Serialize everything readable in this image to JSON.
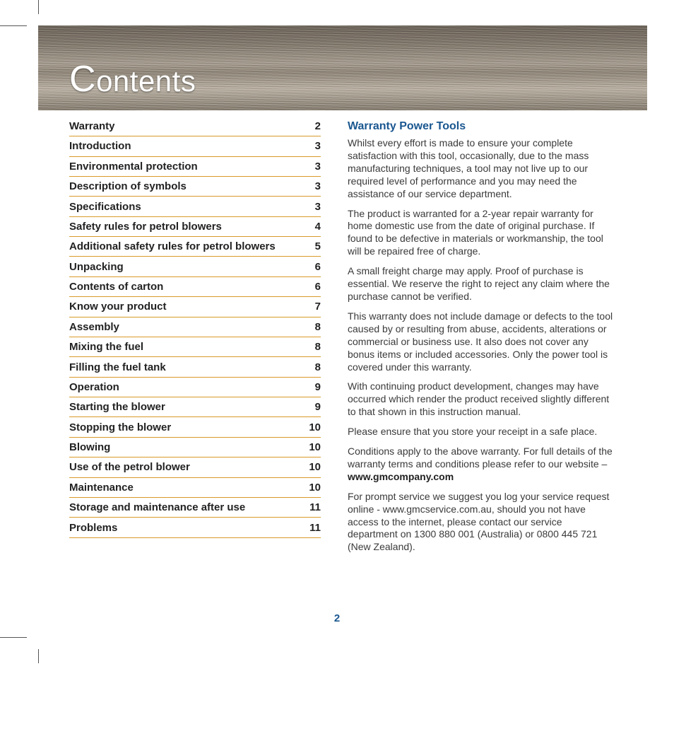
{
  "banner": {
    "title_cap": "C",
    "title_rest": "ontents"
  },
  "colors": {
    "heading": "#1a5790",
    "toc_rule": "#d99a2b",
    "body_text": "#3a3a3a",
    "page_number": "#1a5790"
  },
  "toc": [
    {
      "label": "Warranty",
      "page": "2"
    },
    {
      "label": "Introduction",
      "page": "3"
    },
    {
      "label": "Environmental protection",
      "page": "3"
    },
    {
      "label": "Description of symbols",
      "page": "3"
    },
    {
      "label": "Specifications",
      "page": "3"
    },
    {
      "label": "Safety rules for petrol blowers",
      "page": "4"
    },
    {
      "label": "Additional safety rules for petrol blowers",
      "page": "5"
    },
    {
      "label": "Unpacking",
      "page": "6"
    },
    {
      "label": "Contents of carton",
      "page": "6"
    },
    {
      "label": "Know your product",
      "page": "7"
    },
    {
      "label": "Assembly",
      "page": "8"
    },
    {
      "label": "Mixing the fuel",
      "page": "8"
    },
    {
      "label": "Filling the fuel tank",
      "page": "8"
    },
    {
      "label": "Operation",
      "page": "9"
    },
    {
      "label": "Starting the blower",
      "page": "9"
    },
    {
      "label": "Stopping the blower",
      "page": "10"
    },
    {
      "label": "Blowing",
      "page": "10"
    },
    {
      "label": "Use of the petrol blower",
      "page": "10"
    },
    {
      "label": "Maintenance",
      "page": "10"
    },
    {
      "label": "Storage and maintenance after use",
      "page": "11"
    },
    {
      "label": "Problems",
      "page": "11"
    }
  ],
  "warranty": {
    "heading": "Warranty Power Tools",
    "p1": "Whilst every effort is made to ensure your complete satisfaction with this tool, occasionally, due to the mass manufacturing techniques, a tool may not live up to our required level of performance and you may need the assistance of our service department.",
    "p2": "The product is warranted for a 2-year repair warranty for home domestic use from the date of original purchase. If found to be defective in materials or workmanship, the tool will be repaired free of charge.",
    "p3": "A small freight charge may apply. Proof of purchase is essential. We reserve the right to reject any claim where the purchase cannot be verified.",
    "p4": "This warranty does not include damage or defects to the tool caused by or resulting from abuse, accidents, alterations or commercial or business use. It also does not cover any bonus items or included accessories. Only the power tool is covered under this warranty.",
    "p5": "With continuing product development, changes may have occurred which render the product received slightly different to that shown in this instruction manual.",
    "p6": "Please ensure that you store your receipt in a safe place.",
    "p7_pre": "Conditions apply to the above warranty. For full details of the warranty terms and conditions please refer to our website – ",
    "p7_bold": "www.gmcompany.com",
    "p8": "For prompt service we suggest you log your service request online - www.gmcservice.com.au, should you not have access to the internet, please contact our service department on 1300 880 001 (Australia) or 0800 445 721 (New Zealand)."
  },
  "page_number": "2"
}
